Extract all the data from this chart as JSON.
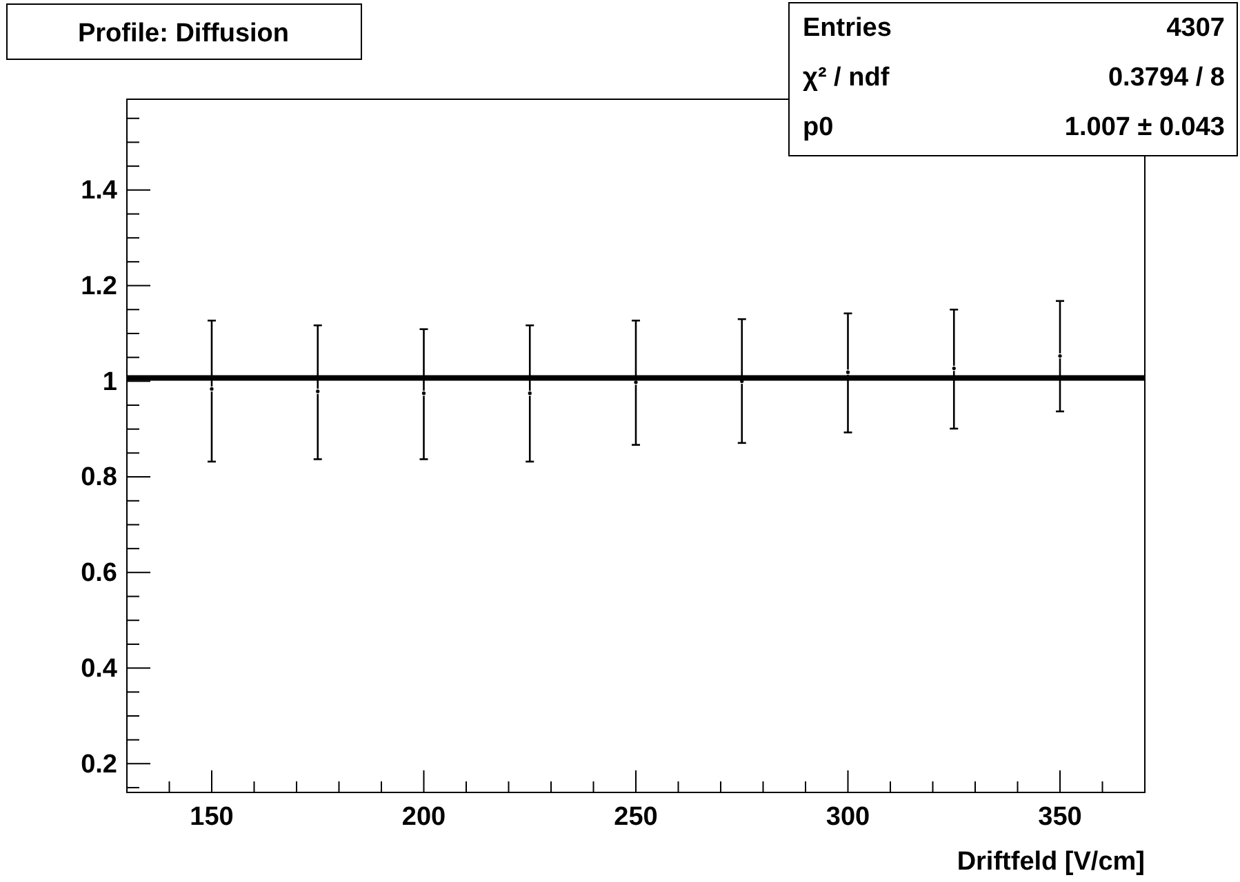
{
  "chart_data": {
    "type": "scatter",
    "title": "Profile: Diffusion",
    "xlabel": "Driftfeld [V/cm]",
    "annotations": [
      "Entries",
      "4307",
      "χ² / ndf",
      "0.3794 / 8",
      "p0",
      "1.007 ± 0.043"
    ],
    "xlim": [
      130,
      370
    ],
    "ylim": [
      0.14,
      1.59
    ],
    "xticks": [
      {
        "value": 140,
        "label": null
      },
      150,
      {
        "value": 160,
        "label": null
      },
      {
        "value": 170,
        "label": null
      },
      {
        "value": 180,
        "label": null
      },
      {
        "value": 190,
        "label": null
      },
      200,
      {
        "value": 210,
        "label": null
      },
      {
        "value": 220,
        "label": null
      },
      {
        "value": 230,
        "label": null
      },
      {
        "value": 240,
        "label": null
      },
      250,
      {
        "value": 260,
        "label": null
      },
      {
        "value": 270,
        "label": null
      },
      {
        "value": 280,
        "label": null
      },
      {
        "value": 290,
        "label": null
      },
      300,
      {
        "value": 310,
        "label": null
      },
      {
        "value": 320,
        "label": null
      },
      {
        "value": 330,
        "label": null
      },
      {
        "value": 340,
        "label": null
      },
      350,
      {
        "value": 360,
        "label": null
      }
    ],
    "yticks": [
      {
        "value": 0.15,
        "label": null
      },
      0.2,
      {
        "value": 0.25,
        "label": null
      },
      {
        "value": 0.3,
        "label": null
      },
      {
        "value": 0.35,
        "label": null
      },
      0.4,
      {
        "value": 0.45,
        "label": null
      },
      {
        "value": 0.5,
        "label": null
      },
      {
        "value": 0.55,
        "label": null
      },
      0.6,
      {
        "value": 0.65,
        "label": null
      },
      {
        "value": 0.7,
        "label": null
      },
      {
        "value": 0.75,
        "label": null
      },
      0.8,
      {
        "value": 0.85,
        "label": null
      },
      {
        "value": 0.9,
        "label": null
      },
      {
        "value": 0.95,
        "label": null
      },
      {
        "value": 1,
        "label": "1"
      },
      {
        "value": 1.05,
        "label": null
      },
      {
        "value": 1.1,
        "label": null
      },
      {
        "value": 1.15,
        "label": null
      },
      1.2,
      {
        "value": 1.25,
        "label": null
      },
      {
        "value": 1.3,
        "label": null
      },
      {
        "value": 1.35,
        "label": null
      },
      1.4,
      {
        "value": 1.45,
        "label": null
      },
      {
        "value": 1.5,
        "label": null
      },
      {
        "value": 1.55,
        "label": null
      }
    ],
    "grid": false,
    "marker": "circle",
    "series": [
      {
        "color": "#000000",
        "x": [
          150,
          175,
          200,
          225,
          250,
          275,
          300,
          325,
          350
        ],
        "values": [
          0.984,
          0.979,
          0.975,
          0.975,
          0.998,
          1.0,
          1.019,
          1.027,
          1.053
        ],
        "errors": [
          [
            0.832,
            1.127
          ],
          [
            0.837,
            1.117
          ],
          [
            0.837,
            1.109
          ],
          [
            0.832,
            1.117
          ],
          [
            0.867,
            1.127
          ],
          [
            0.871,
            1.13
          ],
          [
            0.893,
            1.142
          ],
          [
            0.901,
            1.15
          ],
          [
            0.937,
            1.168
          ]
        ]
      },
      {
        "type": "line",
        "color": "#000000",
        "x": [
          130,
          370
        ],
        "values": [
          1.007,
          1.007
        ],
        "line_style": "solid",
        "marker": "none"
      }
    ]
  }
}
